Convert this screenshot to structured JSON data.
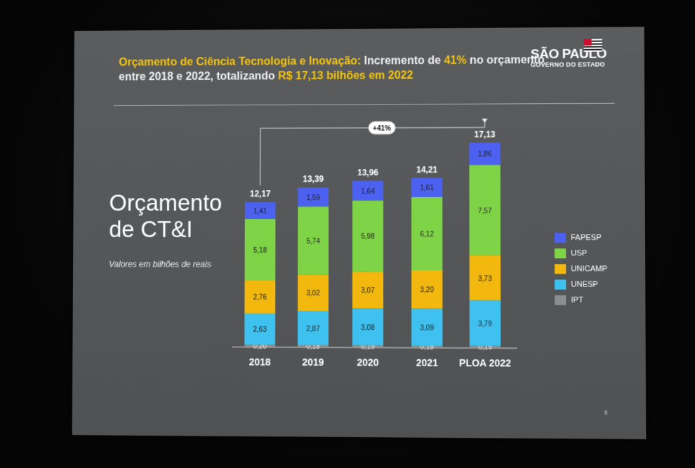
{
  "header": {
    "line1_a": "Orçamento de Ciência Tecnologia e Inovação:",
    "line1_b": " Incremento de ",
    "line1_c": "41%",
    "line1_d": " no orçamento",
    "line2_a": "entre 2018 e 2022, totalizando ",
    "line2_b": "R$ 17,13 bilhões em 2022"
  },
  "logo": {
    "line1": "SÃO PAULO",
    "line2": "GOVERNO DO ESTADO"
  },
  "left_title": {
    "line1": "Orçamento",
    "line2": "de CT&I"
  },
  "subtitle": "Valores em bilhões de reais",
  "page_number": "8",
  "colors": {
    "FAPESP": "#4c61ef",
    "USP": "#7fd346",
    "UNICAMP": "#f2b80e",
    "UNESP": "#3ec1ee",
    "IPT": "#8e8e8e",
    "accent": "#f6c511"
  },
  "chart_data": {
    "type": "bar",
    "stacked": true,
    "categories": [
      "2018",
      "2019",
      "2020",
      "2021",
      "PLOA 2022"
    ],
    "series": [
      {
        "name": "IPT",
        "values": [
          0.2,
          0.18,
          0.19,
          0.18,
          0.19
        ],
        "labels": [
          "0,20",
          "0,18",
          "0,19",
          "0,18",
          "0,19"
        ]
      },
      {
        "name": "UNESP",
        "values": [
          2.63,
          2.87,
          3.08,
          3.09,
          3.79
        ],
        "labels": [
          "2,63",
          "2,87",
          "3,08",
          "3,09",
          "3,79"
        ]
      },
      {
        "name": "UNICAMP",
        "values": [
          2.76,
          3.02,
          3.07,
          3.2,
          3.73
        ],
        "labels": [
          "2,76",
          "3,02",
          "3,07",
          "3,20",
          "3,73"
        ]
      },
      {
        "name": "USP",
        "values": [
          5.18,
          5.74,
          5.98,
          6.12,
          7.57
        ],
        "labels": [
          "5,18",
          "5,74",
          "5,98",
          "6,12",
          "7,57"
        ]
      },
      {
        "name": "FAPESP",
        "values": [
          1.41,
          1.59,
          1.64,
          1.61,
          1.86
        ],
        "labels": [
          "1,41",
          "1,59",
          "1,64",
          "1,61",
          "1,86"
        ]
      }
    ],
    "totals": [
      12.17,
      13.39,
      13.96,
      14.21,
      17.13
    ],
    "total_labels": [
      "12,17",
      "13,39",
      "13,96",
      "14,21",
      "17,13"
    ],
    "annotation": "+41%",
    "legend": [
      "FAPESP",
      "USP",
      "UNICAMP",
      "UNESP",
      "IPT"
    ],
    "legend_position": "right",
    "grid": false
  }
}
